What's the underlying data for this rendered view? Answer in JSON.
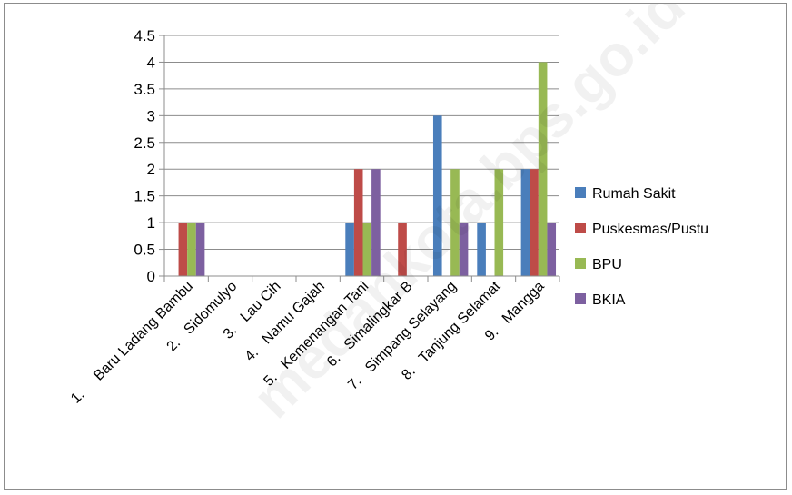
{
  "chart_data": {
    "type": "bar",
    "title": "",
    "xlabel": "",
    "ylabel": "",
    "ylim": [
      0,
      4.5
    ],
    "yticks": [
      "0",
      "0.5",
      "1",
      "1.5",
      "2",
      "2.5",
      "3",
      "3.5",
      "4",
      "4.5"
    ],
    "grid": true,
    "legend_position": "right",
    "categories": [
      "1.     Baru Ladang Bambu",
      "2.   Sidomulyo",
      "3.   Lau Cih",
      "4.   Namu Gajah",
      "5.   Kemenangan Tani",
      "6.   Simalingkar B",
      "7.   Simpang Selayang",
      "8.   Tanjung Selamat",
      "9.   Mangga"
    ],
    "series": [
      {
        "name": "Rumah Sakit",
        "color": "#4a7ebb",
        "values": [
          0,
          0,
          0,
          0,
          1,
          0,
          3,
          1,
          2
        ]
      },
      {
        "name": "Puskesmas/Pustu",
        "color": "#be4b48",
        "values": [
          1,
          0,
          0,
          0,
          2,
          1,
          0,
          0,
          2
        ]
      },
      {
        "name": "BPU",
        "color": "#98b954",
        "values": [
          1,
          0,
          0,
          0,
          1,
          0,
          2,
          2,
          4
        ]
      },
      {
        "name": "BKIA",
        "color": "#7d60a0",
        "values": [
          1,
          0,
          0,
          0,
          2,
          0,
          1,
          0,
          1
        ]
      }
    ],
    "watermark": "medankota.bps.go.id"
  }
}
